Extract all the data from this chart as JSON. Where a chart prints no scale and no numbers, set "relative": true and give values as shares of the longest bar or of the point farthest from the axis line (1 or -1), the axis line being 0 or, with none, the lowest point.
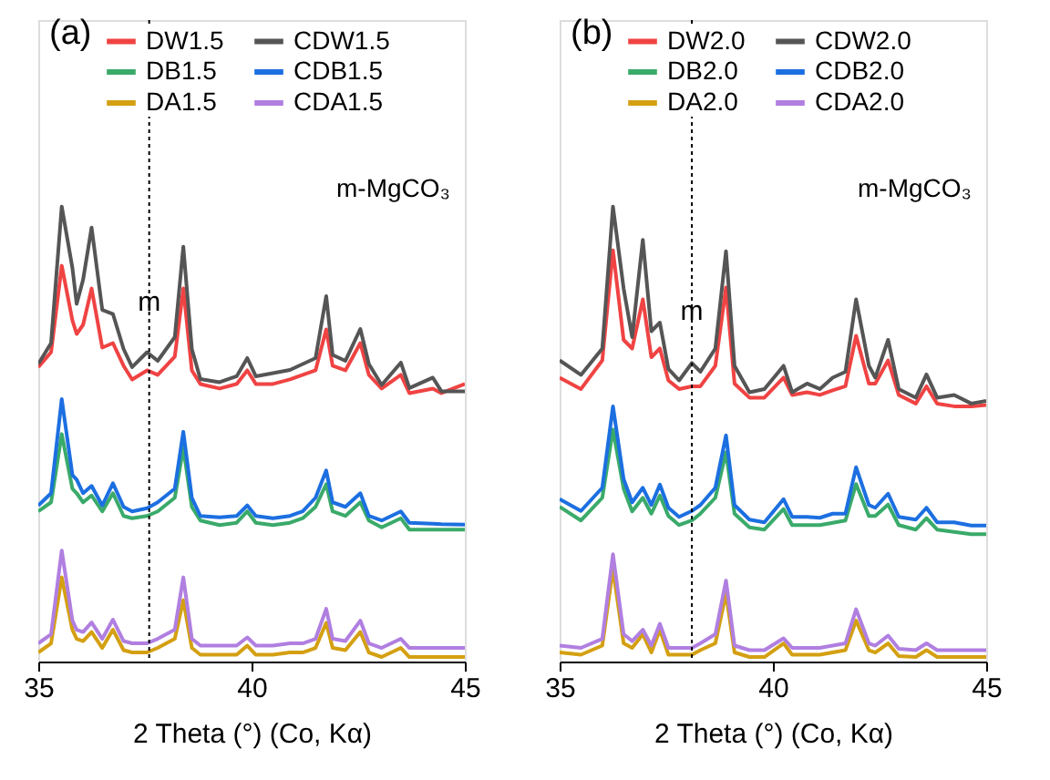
{
  "chart_data": [
    {
      "type": "line",
      "relative": true,
      "xlabel": "2 Theta (°) (Co, Kα)",
      "xlim": [
        35,
        45
      ],
      "xticks": [
        35,
        40,
        45
      ],
      "tick_labels": "x",
      "grid": false,
      "legend": "top",
      "line_style": "solid",
      "x": [
        35.0,
        35.3,
        35.55,
        35.8,
        35.9,
        36.05,
        36.25,
        36.5,
        36.75,
        37.0,
        37.2,
        37.55,
        37.8,
        38.2,
        38.4,
        38.6,
        38.8,
        39.25,
        39.65,
        39.9,
        40.1,
        40.5,
        40.9,
        41.2,
        41.5,
        41.75,
        41.9,
        42.2,
        42.55,
        42.75,
        43.05,
        43.5,
        43.7,
        44.25,
        44.45,
        45.0
      ],
      "series": [
        {
          "name": "DW1.5",
          "color": "#f04343",
          "values": [
            0.647,
            0.68,
            0.87,
            0.75,
            0.72,
            0.74,
            0.82,
            0.69,
            0.7,
            0.65,
            0.62,
            0.64,
            0.63,
            0.67,
            0.82,
            0.64,
            0.61,
            0.6,
            0.61,
            0.64,
            0.61,
            0.61,
            0.62,
            0.63,
            0.64,
            0.73,
            0.65,
            0.64,
            0.7,
            0.63,
            0.6,
            0.63,
            0.59,
            0.6,
            0.59,
            0.61
          ]
        },
        {
          "name": "DB1.5",
          "color": "#3aaa6a",
          "values": [
            0.33,
            0.35,
            0.5,
            0.38,
            0.37,
            0.35,
            0.365,
            0.33,
            0.37,
            0.32,
            0.315,
            0.32,
            0.33,
            0.36,
            0.47,
            0.34,
            0.31,
            0.3,
            0.305,
            0.33,
            0.305,
            0.3,
            0.305,
            0.315,
            0.34,
            0.39,
            0.33,
            0.32,
            0.35,
            0.31,
            0.295,
            0.315,
            0.29,
            0.29,
            0.29,
            0.29
          ]
        },
        {
          "name": "DA1.5",
          "color": "#d4a012",
          "values": [
            0.02,
            0.04,
            0.185,
            0.07,
            0.05,
            0.045,
            0.065,
            0.03,
            0.07,
            0.025,
            0.02,
            0.02,
            0.03,
            0.05,
            0.135,
            0.03,
            0.015,
            0.015,
            0.015,
            0.035,
            0.015,
            0.015,
            0.02,
            0.02,
            0.03,
            0.085,
            0.03,
            0.025,
            0.065,
            0.02,
            0.01,
            0.03,
            0.01,
            0.01,
            0.01,
            0.01
          ]
        },
        {
          "name": "CDW1.5",
          "color": "#555555",
          "values": [
            0.654,
            0.7,
            1.0,
            0.865,
            0.786,
            0.839,
            0.954,
            0.773,
            0.764,
            0.687,
            0.647,
            0.68,
            0.661,
            0.713,
            0.912,
            0.687,
            0.621,
            0.614,
            0.627,
            0.667,
            0.627,
            0.634,
            0.641,
            0.654,
            0.667,
            0.803,
            0.674,
            0.661,
            0.731,
            0.654,
            0.608,
            0.657,
            0.601,
            0.624,
            0.594,
            0.594
          ]
        },
        {
          "name": "CDB1.5",
          "color": "#1c6fe0",
          "values": [
            0.343,
            0.37,
            0.577,
            0.41,
            0.4,
            0.37,
            0.386,
            0.343,
            0.392,
            0.34,
            0.33,
            0.337,
            0.35,
            0.38,
            0.505,
            0.36,
            0.32,
            0.317,
            0.32,
            0.343,
            0.32,
            0.315,
            0.32,
            0.33,
            0.36,
            0.42,
            0.35,
            0.34,
            0.37,
            0.32,
            0.31,
            0.33,
            0.305,
            0.303,
            0.302,
            0.301
          ]
        },
        {
          "name": "CDA1.5",
          "color": "#b07fe0",
          "values": [
            0.04,
            0.06,
            0.244,
            0.09,
            0.07,
            0.065,
            0.086,
            0.05,
            0.092,
            0.045,
            0.04,
            0.04,
            0.05,
            0.07,
            0.185,
            0.05,
            0.035,
            0.035,
            0.035,
            0.053,
            0.035,
            0.035,
            0.04,
            0.04,
            0.05,
            0.116,
            0.05,
            0.045,
            0.09,
            0.04,
            0.03,
            0.05,
            0.03,
            0.03,
            0.03,
            0.03
          ]
        }
      ],
      "ref_lines": [
        {
          "axis": "x",
          "value": 37.6,
          "color": "#000000",
          "line_style": "dotted"
        }
      ],
      "annotations": [
        "(a)",
        "m-MgCO₃",
        {
          "text": "m",
          "x": 37.6,
          "y": 0.76
        }
      ]
    },
    {
      "type": "line",
      "relative": true,
      "xlabel": "2 Theta (°) (Co, Kα)",
      "xlim": [
        35,
        45
      ],
      "xticks": [
        35,
        40,
        45
      ],
      "tick_labels": "x",
      "grid": false,
      "legend": "top",
      "line_style": "solid",
      "x": [
        35.0,
        35.5,
        36.0,
        36.25,
        36.5,
        36.7,
        36.95,
        37.15,
        37.35,
        37.55,
        37.8,
        38.1,
        38.3,
        38.65,
        38.9,
        39.1,
        39.45,
        39.8,
        40.25,
        40.45,
        40.8,
        41.1,
        41.4,
        41.7,
        41.95,
        42.25,
        42.4,
        42.7,
        42.95,
        43.35,
        43.6,
        43.85,
        44.25,
        44.65,
        45.0
      ],
      "series": [
        {
          "name": "DW2.0",
          "color": "#f04343",
          "values": [
            0.624,
            0.599,
            0.662,
            0.904,
            0.707,
            0.688,
            0.796,
            0.669,
            0.688,
            0.618,
            0.599,
            0.605,
            0.605,
            0.65,
            0.822,
            0.611,
            0.58,
            0.58,
            0.624,
            0.586,
            0.592,
            0.586,
            0.596,
            0.605,
            0.716,
            0.611,
            0.611,
            0.662,
            0.586,
            0.567,
            0.605,
            0.567,
            0.561,
            0.561,
            0.564
          ]
        },
        {
          "name": "DB2.0",
          "color": "#3aaa6a",
          "values": [
            0.34,
            0.31,
            0.36,
            0.51,
            0.38,
            0.33,
            0.36,
            0.325,
            0.365,
            0.32,
            0.3,
            0.31,
            0.325,
            0.36,
            0.46,
            0.325,
            0.295,
            0.29,
            0.335,
            0.3,
            0.3,
            0.3,
            0.305,
            0.31,
            0.39,
            0.32,
            0.32,
            0.345,
            0.3,
            0.29,
            0.315,
            0.29,
            0.285,
            0.28,
            0.28
          ]
        },
        {
          "name": "DA2.0",
          "color": "#d4a012",
          "values": [
            0.02,
            0.015,
            0.035,
            0.204,
            0.04,
            0.03,
            0.06,
            0.02,
            0.07,
            0.015,
            0.015,
            0.015,
            0.025,
            0.04,
            0.15,
            0.02,
            0.01,
            0.01,
            0.04,
            0.015,
            0.015,
            0.015,
            0.02,
            0.025,
            0.09,
            0.025,
            0.02,
            0.04,
            0.012,
            0.01,
            0.025,
            0.01,
            0.01,
            0.01,
            0.01
          ]
        },
        {
          "name": "CDW2.0",
          "color": "#555555",
          "values": [
            0.662,
            0.63,
            0.688,
            1.0,
            0.82,
            0.713,
            0.927,
            0.726,
            0.745,
            0.643,
            0.618,
            0.656,
            0.637,
            0.688,
            0.902,
            0.65,
            0.592,
            0.599,
            0.65,
            0.592,
            0.611,
            0.599,
            0.624,
            0.637,
            0.796,
            0.65,
            0.624,
            0.707,
            0.599,
            0.58,
            0.631,
            0.58,
            0.586,
            0.567,
            0.573
          ]
        },
        {
          "name": "CDB2.0",
          "color": "#1c6fe0",
          "values": [
            0.357,
            0.331,
            0.382,
            0.561,
            0.401,
            0.35,
            0.382,
            0.344,
            0.389,
            0.338,
            0.318,
            0.331,
            0.344,
            0.382,
            0.497,
            0.344,
            0.312,
            0.306,
            0.357,
            0.318,
            0.318,
            0.316,
            0.325,
            0.325,
            0.427,
            0.344,
            0.338,
            0.369,
            0.318,
            0.312,
            0.338,
            0.306,
            0.306,
            0.299,
            0.299
          ]
        },
        {
          "name": "CDA2.0",
          "color": "#b07fe0",
          "values": [
            0.035,
            0.03,
            0.05,
            0.236,
            0.06,
            0.045,
            0.07,
            0.035,
            0.083,
            0.03,
            0.03,
            0.03,
            0.04,
            0.06,
            0.178,
            0.035,
            0.025,
            0.025,
            0.051,
            0.03,
            0.03,
            0.03,
            0.035,
            0.04,
            0.115,
            0.04,
            0.035,
            0.057,
            0.028,
            0.025,
            0.04,
            0.025,
            0.025,
            0.025,
            0.025
          ]
        }
      ],
      "ref_lines": [
        {
          "axis": "x",
          "value": 38.1,
          "color": "#000000",
          "line_style": "dotted"
        }
      ],
      "annotations": [
        "(b)",
        "m-MgCO₃",
        {
          "text": "m",
          "x": 38.1,
          "y": 0.74
        }
      ]
    }
  ]
}
